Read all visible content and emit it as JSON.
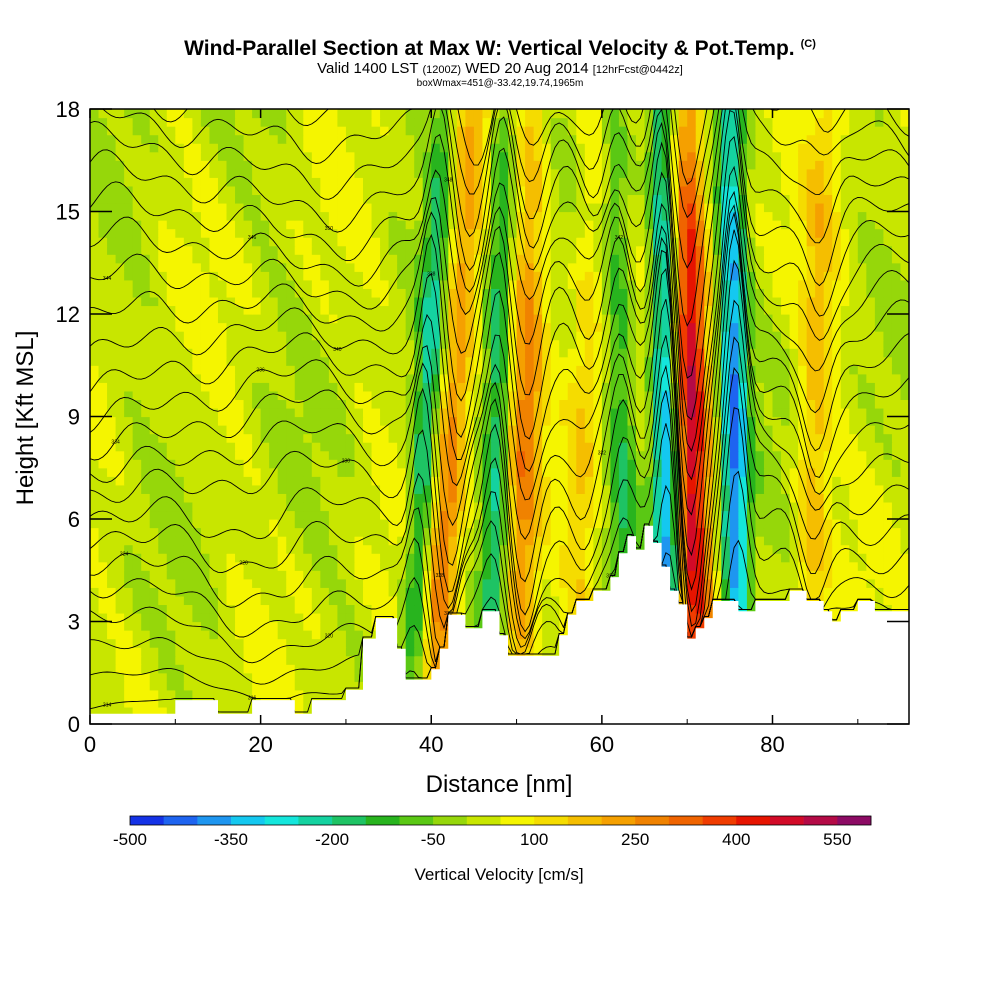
{
  "chart_data": {
    "type": "contour",
    "title": "Wind-Parallel Section at Max W: Vertical Velocity & Pot.Temp.",
    "title_mark": "(C)",
    "subtitle_main": "Valid 1400 LST",
    "subtitle_z": "(1200Z)",
    "subtitle_date": "WED 20 Aug 2014",
    "subtitle_fcst": "[12hrFcst@0442z]",
    "subtitle2": "boxWmax=451@-33.42,19.74,1965m",
    "xlabel": "Distance [nm]",
    "ylabel": "Height [Kft MSL]",
    "xlim": [
      0,
      96
    ],
    "ylim": [
      0,
      18
    ],
    "x_ticks": [
      0,
      20,
      40,
      60,
      80
    ],
    "y_ticks": [
      0,
      3,
      6,
      9,
      12,
      15,
      18
    ],
    "colorbar": {
      "title": "Vertical Velocity [cm/s]",
      "labels": [
        "-500",
        "-350",
        "-200",
        "-50",
        "100",
        "250",
        "400",
        "550"
      ],
      "label_values": [
        -500,
        -350,
        -200,
        -50,
        100,
        250,
        400,
        550
      ],
      "min": -500,
      "max": 600,
      "colors": [
        "#1432e6",
        "#1e64f0",
        "#1e96f0",
        "#14c8f0",
        "#14e6dc",
        "#14d2a0",
        "#1ec364",
        "#28b41e",
        "#5ac814",
        "#96d70a",
        "#c8e600",
        "#f5f500",
        "#f5dc00",
        "#f5be00",
        "#f5a000",
        "#f08200",
        "#f06400",
        "#f03c00",
        "#e61400",
        "#d20a28",
        "#b40a46",
        "#8c0a64"
      ]
    },
    "velocity_features": [
      {
        "kind": "updraft",
        "x_base": 40,
        "x_top": 45,
        "w": 260
      },
      {
        "kind": "downdraft",
        "x_base": 37.5,
        "x_top": 41.5,
        "w": -240
      },
      {
        "kind": "updraft",
        "x_base": 50,
        "x_top": 52,
        "w": 230
      },
      {
        "kind": "downdraft",
        "x_base": 47,
        "x_top": 48.5,
        "w": -230
      },
      {
        "kind": "updraft",
        "x_base": 57,
        "x_top": 59,
        "w": 120
      },
      {
        "kind": "downdraft",
        "x_base": 63,
        "x_top": 61.5,
        "w": -150
      },
      {
        "kind": "updraft",
        "x_base": 71,
        "x_top": 70,
        "w": 451
      },
      {
        "kind": "downdraft",
        "x_base": 68,
        "x_top": 67,
        "w": -400
      },
      {
        "kind": "downdraft",
        "x_base": 76,
        "x_top": 75,
        "w": -420
      },
      {
        "kind": "updraft",
        "x_base": 84,
        "x_top": 86,
        "w": 150
      }
    ],
    "terrain_kft": [
      [
        0,
        0.3
      ],
      [
        10,
        0.3
      ],
      [
        10,
        0.7
      ],
      [
        15,
        0.7
      ],
      [
        15,
        0.3
      ],
      [
        19,
        0.3
      ],
      [
        19,
        0.7
      ],
      [
        24,
        0.7
      ],
      [
        24,
        0.3
      ],
      [
        26,
        0.3
      ],
      [
        26,
        0.7
      ],
      [
        30,
        0.7
      ],
      [
        30,
        1.0
      ],
      [
        32,
        1.0
      ],
      [
        32,
        2.5
      ],
      [
        33.5,
        2.5
      ],
      [
        33.5,
        3.1
      ],
      [
        36,
        3.1
      ],
      [
        36,
        2.2
      ],
      [
        37,
        2.2
      ],
      [
        37,
        1.3
      ],
      [
        40,
        1.3
      ],
      [
        40,
        1.6
      ],
      [
        41,
        1.6
      ],
      [
        41,
        2.2
      ],
      [
        42,
        2.2
      ],
      [
        42,
        3.2
      ],
      [
        44,
        3.2
      ],
      [
        44,
        2.8
      ],
      [
        46,
        2.8
      ],
      [
        46,
        3.3
      ],
      [
        48,
        3.3
      ],
      [
        48,
        2.6
      ],
      [
        49,
        2.6
      ],
      [
        49,
        2.0
      ],
      [
        55,
        2.0
      ],
      [
        55,
        2.6
      ],
      [
        56,
        2.6
      ],
      [
        56,
        3.2
      ],
      [
        57,
        3.2
      ],
      [
        57,
        3.6
      ],
      [
        59,
        3.6
      ],
      [
        59,
        3.9
      ],
      [
        61,
        3.9
      ],
      [
        61,
        4.3
      ],
      [
        62,
        4.3
      ],
      [
        62,
        5.0
      ],
      [
        63,
        5.0
      ],
      [
        63,
        5.5
      ],
      [
        64,
        5.5
      ],
      [
        64,
        5.1
      ],
      [
        65,
        5.1
      ],
      [
        65,
        5.8
      ],
      [
        66,
        5.8
      ],
      [
        66,
        5.3
      ],
      [
        67,
        5.3
      ],
      [
        67,
        4.6
      ],
      [
        68,
        4.6
      ],
      [
        68,
        3.9
      ],
      [
        69,
        3.9
      ],
      [
        69,
        3.5
      ],
      [
        70,
        3.5
      ],
      [
        70,
        2.5
      ],
      [
        71,
        2.5
      ],
      [
        71,
        2.8
      ],
      [
        72,
        2.8
      ],
      [
        72,
        3.1
      ],
      [
        73,
        3.1
      ],
      [
        73,
        3.6
      ],
      [
        76,
        3.6
      ],
      [
        76,
        3.3
      ],
      [
        78,
        3.3
      ],
      [
        78,
        3.6
      ],
      [
        82,
        3.6
      ],
      [
        82,
        3.9
      ],
      [
        84,
        3.9
      ],
      [
        84,
        3.6
      ],
      [
        86,
        3.6
      ],
      [
        86,
        3.3
      ],
      [
        87,
        3.3
      ],
      [
        87,
        3.0
      ],
      [
        88,
        3.0
      ],
      [
        88,
        3.3
      ],
      [
        90,
        3.3
      ],
      [
        90,
        3.6
      ],
      [
        92,
        3.6
      ],
      [
        92,
        3.3
      ],
      [
        96,
        3.3
      ]
    ],
    "theta_contours": {
      "color": "#000000",
      "spacing_kft": 0.9,
      "label_values": [
        "314",
        "316",
        "318",
        "320",
        "322",
        "324",
        "326",
        "328",
        "330",
        "332",
        "334",
        "336",
        "338",
        "340",
        "342",
        "344",
        "346",
        "348",
        "350"
      ]
    }
  }
}
